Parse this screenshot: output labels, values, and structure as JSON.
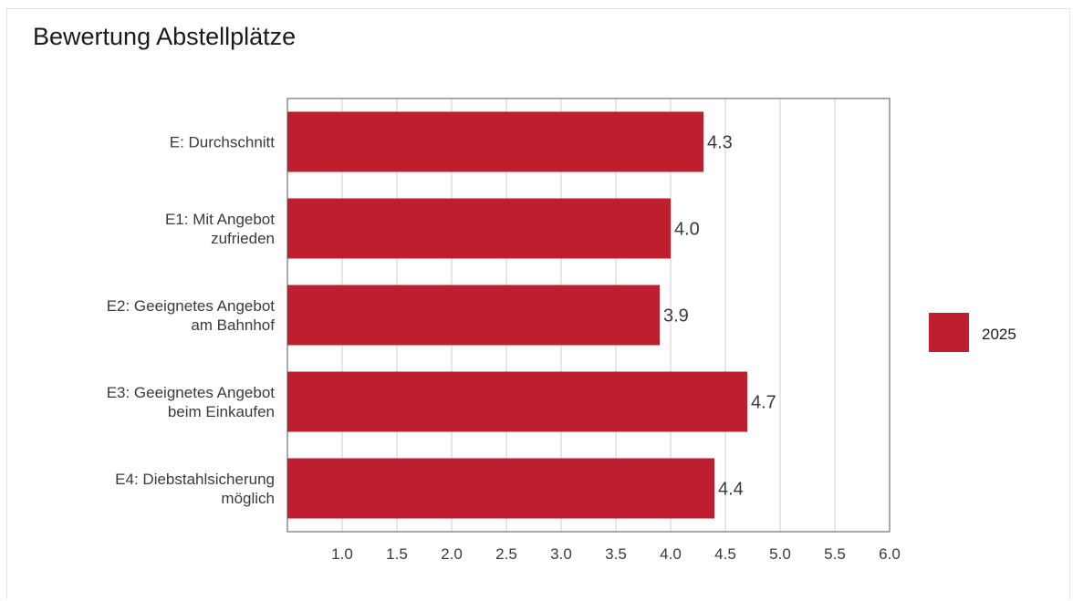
{
  "chart_data": {
    "type": "bar",
    "orientation": "horizontal",
    "title": "Bewertung Abstellplätze",
    "categories": [
      [
        "E: Durchschnitt"
      ],
      [
        "E1: Mit Angebot",
        "zufrieden"
      ],
      [
        "E2: Geeignetes Angebot",
        "am Bahnhof"
      ],
      [
        "E3: Geeignetes Angebot",
        "beim Einkaufen"
      ],
      [
        "E4: Diebstahlsicherung",
        "möglich"
      ]
    ],
    "series": [
      {
        "name": "2025",
        "values": [
          4.3,
          4.0,
          3.9,
          4.7,
          4.4
        ],
        "labels": [
          "4.3",
          "4.0",
          "3.9",
          "4.7",
          "4.4"
        ],
        "color": "#be1e2d"
      }
    ],
    "xlim": [
      0.5,
      6.0
    ],
    "xticks": [
      1.0,
      1.5,
      2.0,
      2.5,
      3.0,
      3.5,
      4.0,
      4.5,
      5.0,
      5.5,
      6.0
    ],
    "xtick_labels": [
      "1.0",
      "1.5",
      "2.0",
      "2.5",
      "3.0",
      "3.5",
      "4.0",
      "4.5",
      "5.0",
      "5.5",
      "6.0"
    ],
    "grid": true,
    "legend": "right"
  }
}
